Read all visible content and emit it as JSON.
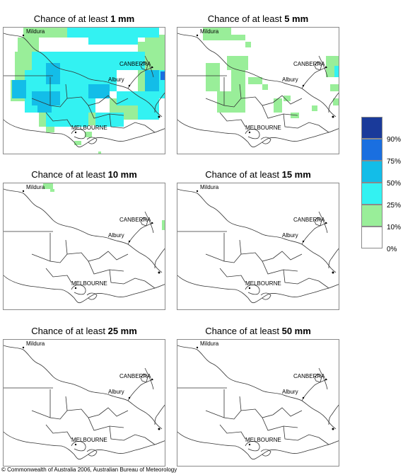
{
  "title_prefix": "Chance of at least",
  "panels": [
    {
      "amount": "1 mm"
    },
    {
      "amount": "5 mm"
    },
    {
      "amount": "10 mm"
    },
    {
      "amount": "15 mm"
    },
    {
      "amount": "25 mm"
    },
    {
      "amount": "50 mm"
    }
  ],
  "places": {
    "mildura": "Mildura",
    "canberra": "CANBERRA",
    "albury": "Albury",
    "melbourne": "MELBOURNE"
  },
  "legend": {
    "bands": [
      {
        "color": "#1a3a9a",
        "label": "90%"
      },
      {
        "color": "#1a6fe0",
        "label": "75%"
      },
      {
        "color": "#13bde8",
        "label": "50%"
      },
      {
        "color": "#33f2f2",
        "label": "25%"
      },
      {
        "color": "#99ee99",
        "label": "10%"
      },
      {
        "color": "#ffffff",
        "label": "0%"
      }
    ]
  },
  "colors": {
    "low": "#99ee99",
    "mid": "#33f2f2",
    "high": "#13bde8",
    "very_high": "#1a6fe0",
    "boundary": "#333333"
  },
  "copyright": "© Commonwealth of Australia 2006, Australian Bureau of Meteorology"
}
